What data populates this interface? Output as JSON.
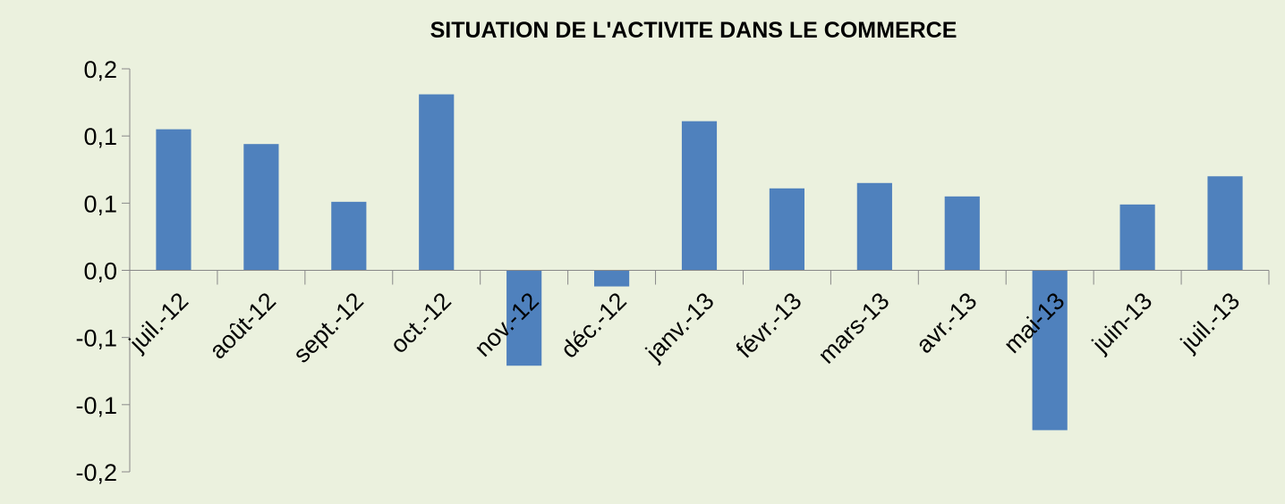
{
  "chart_data": {
    "type": "bar",
    "title": "SITUATION DE L'ACTIVITE DANS LE COMMERCE",
    "categories": [
      "juil.-12",
      "août-12",
      "sept.-12",
      "oct.-12",
      "nov.-12",
      "déc.-12",
      "janv.-13",
      "févr.-13",
      "mars-13",
      "avr.-13",
      "mai-13",
      "juin-13",
      "juil.-13"
    ],
    "values": [
      0.105,
      0.094,
      0.051,
      0.131,
      -0.071,
      -0.012,
      0.111,
      0.061,
      0.065,
      0.055,
      -0.119,
      0.049,
      0.07
    ],
    "color": "#4f81bd",
    "ylim": [
      -0.15,
      0.15
    ],
    "yticks": [
      {
        "value": 0.15,
        "label": "0,2"
      },
      {
        "value": 0.1,
        "label": "0,1"
      },
      {
        "value": 0.05,
        "label": "0,1"
      },
      {
        "value": 0,
        "label": "0,0"
      },
      {
        "value": -0.05,
        "label": "-0,1"
      },
      {
        "value": -0.1,
        "label": "-0,1"
      },
      {
        "value": -0.15,
        "label": "-0,2"
      }
    ],
    "grid": false
  }
}
